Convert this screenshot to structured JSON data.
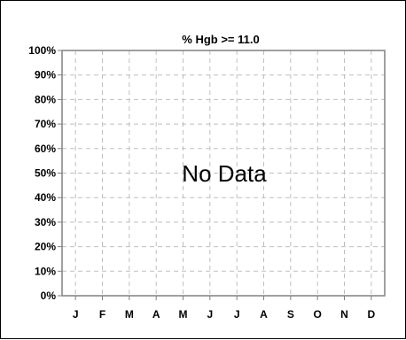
{
  "chart_data": {
    "type": "line",
    "title": "% Hgb >= 11.0",
    "message": "No Data",
    "categories": [
      "J",
      "F",
      "M",
      "A",
      "M",
      "J",
      "J",
      "A",
      "S",
      "O",
      "N",
      "D"
    ],
    "y_ticks": [
      "0%",
      "10%",
      "20%",
      "30%",
      "40%",
      "50%",
      "60%",
      "70%",
      "80%",
      "90%",
      "100%"
    ],
    "ylim": [
      0,
      100
    ],
    "grid": true,
    "series": []
  },
  "colors": {
    "axis": "#808080",
    "grid": "#bfbfbf",
    "text": "#000000"
  }
}
